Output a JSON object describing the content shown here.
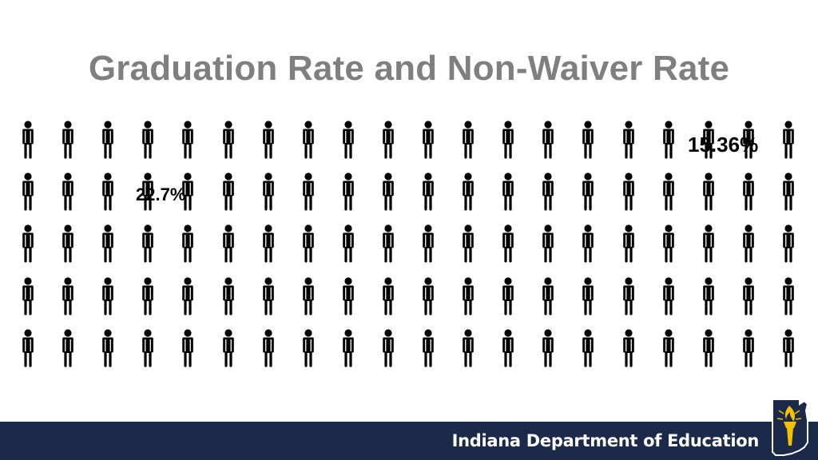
{
  "slide": {
    "title": "Graduation Rate and Non-Waiver Rate",
    "stat_a": "15.36%",
    "stat_b": "22.7%",
    "icon": "person-icon",
    "icon_color": "#000000",
    "title_color": "#7f7f7f"
  },
  "footer": {
    "organization": "Indiana Department of Education",
    "logo_icon": "indiana-torch-logo-icon",
    "background_color": "#1b2a4a",
    "logo_color": "#f2c200"
  }
}
